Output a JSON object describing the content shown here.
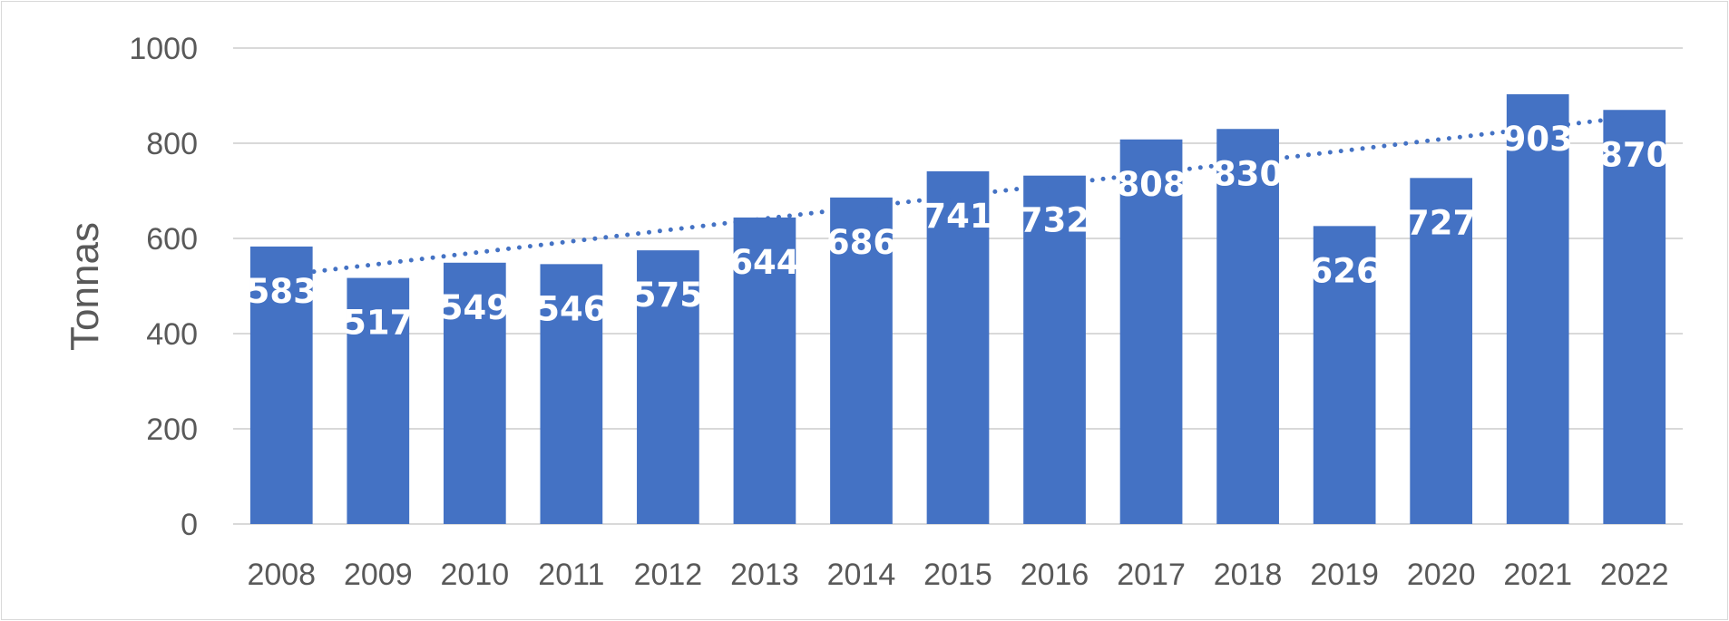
{
  "chart_data": {
    "type": "bar",
    "title": "",
    "xlabel": "",
    "ylabel": "Tonnas",
    "categories": [
      "2008",
      "2009",
      "2010",
      "2011",
      "2012",
      "2013",
      "2014",
      "2015",
      "2016",
      "2017",
      "2018",
      "2019",
      "2020",
      "2021",
      "2022"
    ],
    "series": [
      {
        "values": [
          583,
          517,
          549,
          546,
          575,
          644,
          686,
          741,
          732,
          808,
          830,
          626,
          727,
          903,
          870
        ],
        "color": "#4472c4"
      }
    ],
    "trendline": {
      "type": "linear",
      "style": "dotted",
      "color": "#4472c4"
    },
    "ylim": [
      0,
      1000
    ],
    "yticks": [
      "0",
      "200",
      "400",
      "600",
      "800",
      "1000"
    ],
    "grid": true,
    "legend": "none",
    "data_labels": "inside-end",
    "gridline_color": "#d9d9d9"
  }
}
